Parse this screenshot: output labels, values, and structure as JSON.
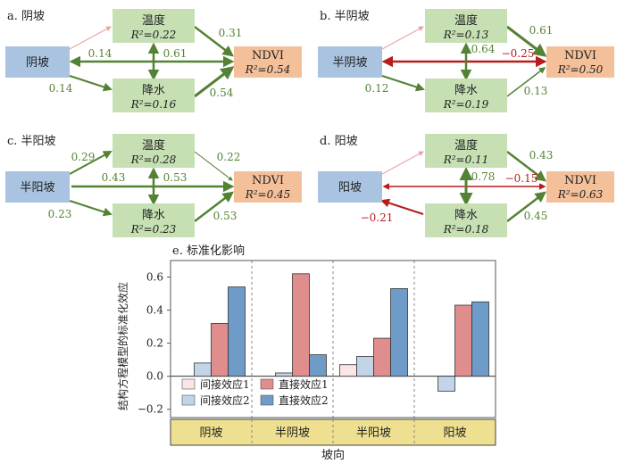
{
  "colors": {
    "slope_box": "#a9c3e0",
    "mid_box": "#c6e0b4",
    "ndvi_box": "#f4c09a",
    "green": "#548235",
    "red": "#b81c1c",
    "pink": "#e6a3a3",
    "bar_indirect1": "#fbe5e5",
    "bar_direct1": "#e08d8d",
    "bar_indirect2": "#c2d4e8",
    "bar_direct2": "#6f9bc8",
    "cat_band": "#eee090"
  },
  "panels": [
    {
      "title": "a. 阴坡",
      "slope": "阴坡",
      "temp": {
        "label": "温度",
        "r2": "R²=0.22"
      },
      "precip": {
        "label": "降水",
        "r2": "R²=0.16"
      },
      "ndvi": {
        "label": "NDVI",
        "r2": "R²=0.54"
      },
      "coef": {
        "slope_temp": "",
        "slope_precip": "0.14",
        "slope_ndvi": "0.14",
        "temp_precip": "0.61",
        "temp_ndvi": "0.31",
        "precip_ndvi": "0.54"
      }
    },
    {
      "title": "b. 半阴坡",
      "slope": "半阴坡",
      "temp": {
        "label": "温度",
        "r2": "R²=0.13"
      },
      "precip": {
        "label": "降水",
        "r2": "R²=0.19"
      },
      "ndvi": {
        "label": "NDVI",
        "r2": "R²=0.50"
      },
      "coef": {
        "slope_temp": "",
        "slope_precip": "0.12",
        "slope_ndvi": "−0.25",
        "temp_precip": "0.64",
        "temp_ndvi": "0.61",
        "precip_ndvi": "0.13"
      }
    },
    {
      "title": "c. 半阳坡",
      "slope": "半阳坡",
      "temp": {
        "label": "温度",
        "r2": "R²=0.28"
      },
      "precip": {
        "label": "降水",
        "r2": "R²=0.23"
      },
      "ndvi": {
        "label": "NDVI",
        "r2": "R²=0.45"
      },
      "coef": {
        "slope_temp": "0.29",
        "slope_precip": "0.23",
        "slope_ndvi": "0.43",
        "temp_precip": "0.53",
        "temp_ndvi": "0.22",
        "precip_ndvi": "0.53"
      }
    },
    {
      "title": "d. 阳坡",
      "slope": "阳坡",
      "temp": {
        "label": "温度",
        "r2": "R²=0.11"
      },
      "precip": {
        "label": "降水",
        "r2": "R²=0.18"
      },
      "ndvi": {
        "label": "NDVI",
        "r2": "R²=0.63"
      },
      "coef": {
        "slope_temp": "",
        "slope_precip": "−0.21",
        "slope_ndvi": "−0.15",
        "temp_precip": "0.78",
        "temp_ndvi": "0.43",
        "precip_ndvi": "0.45"
      }
    }
  ],
  "chart_data": {
    "type": "bar",
    "title": "e. 标准化影响",
    "xlabel": "坡向",
    "ylabel": "结构方程模型的标准化效应",
    "categories": [
      "阴坡",
      "半阴坡",
      "半阳坡",
      "阳坡"
    ],
    "ylim": [
      -0.25,
      0.7
    ],
    "yticks": [
      "−0.2",
      "0.0",
      "0.2",
      "0.4",
      "0.6"
    ],
    "series": [
      {
        "name": "间接效应1",
        "values": [
          0,
          0,
          0.07,
          0
        ]
      },
      {
        "name": "间接效应2",
        "values": [
          0.08,
          0.02,
          0.12,
          -0.09
        ]
      },
      {
        "name": "直接效应1",
        "values": [
          0.32,
          0.62,
          0.23,
          0.43
        ]
      },
      {
        "name": "直接效应2",
        "values": [
          0.54,
          0.13,
          0.53,
          0.45
        ]
      }
    ],
    "legend_position": "bottom-left-inside"
  }
}
